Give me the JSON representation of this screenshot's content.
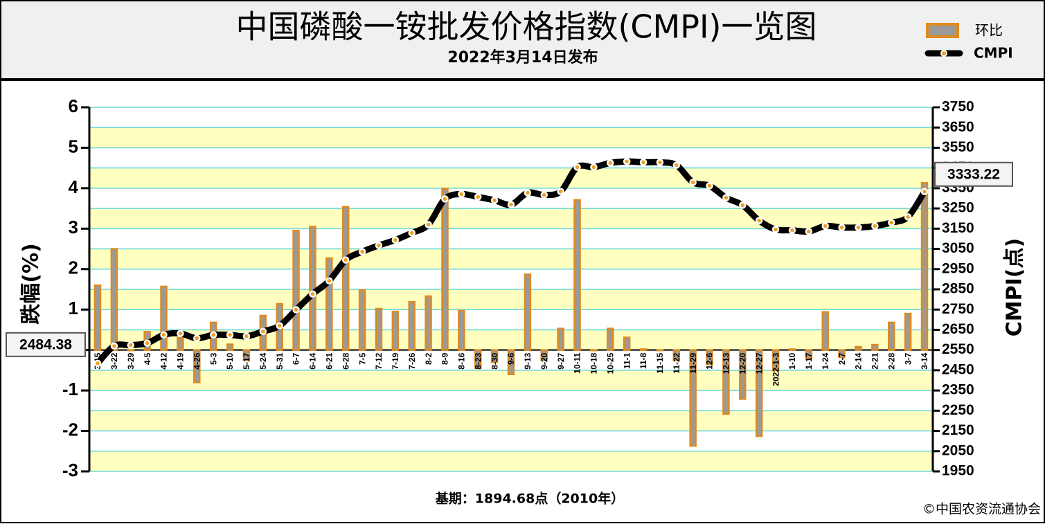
{
  "chart_data": {
    "type": "bar",
    "title": "中国磷酸一铵批发价格指数(CMPI)一览图",
    "subtitle": "2022年3月14日发布",
    "y_label": "跌幅(%)",
    "y2_label": "CMPI(点)",
    "base_note": "基期：1894.68点（2010年）",
    "source": "©中国农资流通协会",
    "categories": [
      "3-15",
      "3-22",
      "3-29",
      "4-5",
      "4-12",
      "4-19",
      "4-26",
      "5-3",
      "5-10",
      "5-17",
      "5-24",
      "5-31",
      "6-7",
      "6-14",
      "6-21",
      "6-28",
      "7-5",
      "7-12",
      "7-19",
      "7-26",
      "8-2",
      "8-9",
      "8-16",
      "8-23",
      "8-30",
      "9-6",
      "9-13",
      "9-20",
      "9-27",
      "10-11",
      "10-18",
      "10-25",
      "11-1",
      "11-8",
      "11-15",
      "11-22",
      "11-29",
      "12-6",
      "12-13",
      "12-20",
      "12-27",
      "2022-1-3",
      "1-10",
      "1-17",
      "1-24",
      "2-7",
      "2-14",
      "2-21",
      "2-28",
      "3-7",
      "3-14"
    ],
    "series": [
      {
        "name": "环比",
        "type": "bar",
        "color": "#9a9a9a",
        "edge_color": "#e08a1e",
        "values": [
          1.6,
          2.5,
          0,
          0.45,
          1.57,
          0.3,
          -0.8,
          0.68,
          0.14,
          -0.25,
          0.85,
          1.14,
          2.95,
          3.05,
          2.27,
          3.54,
          1.48,
          1.02,
          0.95,
          1.19,
          1.33,
          3.99,
          0.97,
          -0.45,
          -0.3,
          -0.6,
          1.87,
          -0.25,
          0.53,
          3.71,
          0,
          0.53,
          0.31,
          0.02,
          0,
          -0.25,
          -2.37,
          -0.35,
          -1.58,
          -1.21,
          -2.13,
          -0.5,
          0.02,
          -0.2,
          0.94,
          -0.18,
          0.08,
          0.13,
          0.68,
          0.9,
          4.13
        ]
      },
      {
        "name": "CMPI",
        "type": "line",
        "axis": "y2",
        "color": "#000000",
        "marker_color": "#f0a020",
        "values": [
          2484.38,
          2570,
          2574,
          2584,
          2625,
          2632,
          2608,
          2625,
          2625,
          2618,
          2642,
          2670,
          2749,
          2827,
          2892,
          2995,
          3036,
          3067,
          3094,
          3129,
          3170,
          3297,
          3321,
          3307,
          3290,
          3269,
          3327,
          3317,
          3334,
          3454,
          3454,
          3475,
          3482,
          3478,
          3478,
          3464,
          3379,
          3362,
          3303,
          3266,
          3190,
          3146,
          3142,
          3136,
          3163,
          3156,
          3156,
          3163,
          3180,
          3208,
          3333.22
        ],
        "value_labels": [
          "2484.38",
          null,
          null,
          null,
          null,
          null,
          null,
          null,
          null,
          null,
          null,
          null,
          null,
          null,
          null,
          null,
          null,
          null,
          null,
          null,
          null,
          null,
          null,
          null,
          null,
          null,
          null,
          null,
          null,
          null,
          null,
          null,
          null,
          null,
          null,
          null,
          null,
          null,
          null,
          null,
          null,
          null,
          null,
          null,
          null,
          null,
          null,
          null,
          null,
          null,
          "3333.22"
        ]
      }
    ],
    "ylim": [
      -3,
      6
    ],
    "yticks": [
      -3,
      -2,
      -1,
      0,
      1,
      2,
      3,
      4,
      5,
      6
    ],
    "y2lim": [
      1950,
      3750
    ],
    "y2ticks": [
      1950,
      2050,
      2150,
      2250,
      2350,
      2450,
      2550,
      2650,
      2750,
      2850,
      2950,
      3050,
      3150,
      3250,
      3350,
      3450,
      3550,
      3650,
      3750
    ],
    "grid": true,
    "band_colors": [
      "#ffffc0",
      "#ffffff"
    ],
    "grid_color": "#66d8d8"
  }
}
